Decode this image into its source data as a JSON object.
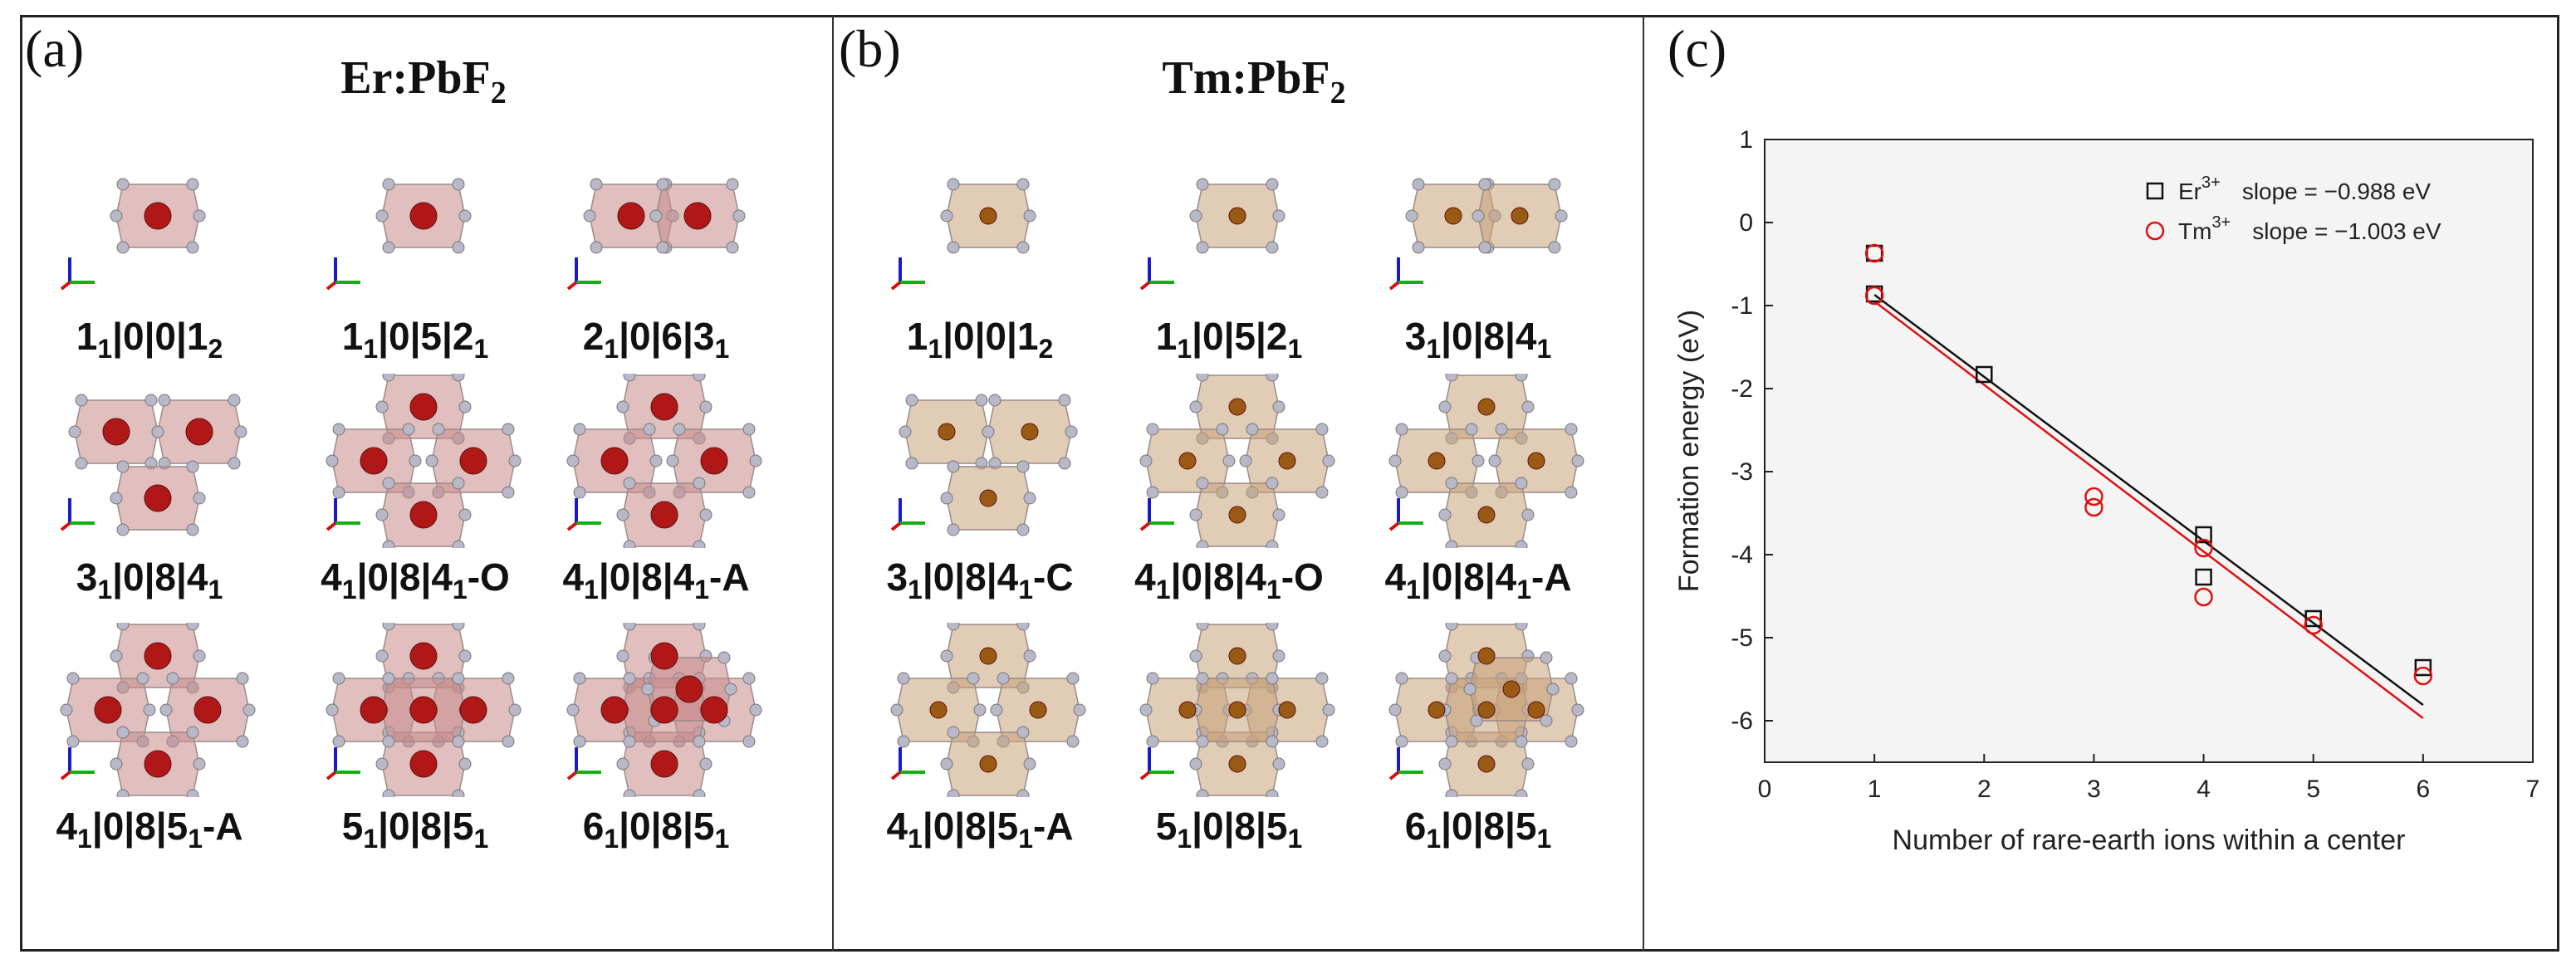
{
  "panel_a": {
    "letter": "(a)",
    "title_main": "Er:PbF",
    "title_sub": "2",
    "items": [
      {
        "parts": [
          "1",
          "1",
          "|0|0|1",
          "2",
          ""
        ]
      },
      {
        "parts": [
          "1",
          "1",
          "|0|5|2",
          "1",
          ""
        ]
      },
      {
        "parts": [
          "2",
          "1",
          "|0|6|3",
          "1",
          ""
        ]
      },
      {
        "parts": [
          "3",
          "1",
          "|0|8|4",
          "1",
          ""
        ]
      },
      {
        "parts": [
          "4",
          "1",
          "|0|8|4",
          "1",
          "-O"
        ]
      },
      {
        "parts": [
          "4",
          "1",
          "|0|8|4",
          "1",
          "-A"
        ]
      },
      {
        "parts": [
          "4",
          "1",
          "|0|8|5",
          "1",
          "-A"
        ]
      },
      {
        "parts": [
          "5",
          "1",
          "|0|8|5",
          "1",
          ""
        ]
      },
      {
        "parts": [
          "6",
          "1",
          "|0|8|5",
          "1",
          ""
        ]
      }
    ]
  },
  "panel_b": {
    "letter": "(b)",
    "title_main": "Tm:PbF",
    "title_sub": "2",
    "items": [
      {
        "parts": [
          "1",
          "1",
          "|0|0|1",
          "2",
          ""
        ]
      },
      {
        "parts": [
          "1",
          "1",
          "|0|5|2",
          "1",
          ""
        ]
      },
      {
        "parts": [
          "3",
          "1",
          "|0|8|4",
          "1",
          ""
        ]
      },
      {
        "parts": [
          "3",
          "1",
          "|0|8|4",
          "1",
          "-C"
        ]
      },
      {
        "parts": [
          "4",
          "1",
          "|0|8|4",
          "1",
          "-O"
        ]
      },
      {
        "parts": [
          "4",
          "1",
          "|0|8|4",
          "1",
          "-A"
        ]
      },
      {
        "parts": [
          "4",
          "1",
          "|0|8|5",
          "1",
          "-A"
        ]
      },
      {
        "parts": [
          "5",
          "1",
          "|0|8|5",
          "1",
          ""
        ]
      },
      {
        "parts": [
          "6",
          "1",
          "|0|8|5",
          "1",
          ""
        ]
      }
    ]
  },
  "panel_c": {
    "letter": "(c)"
  },
  "colors": {
    "er_poly": "#c98a8a",
    "er_ion": "#b01818",
    "tm_poly": "#c9a27a",
    "tm_ion": "#9a5a14",
    "fluorine": "#b8b8c8"
  },
  "chart_data": {
    "type": "scatter",
    "title": "",
    "xlabel": "Number of rare-earth ions within a center",
    "ylabel": "Formation energy (eV)",
    "xlim": [
      0,
      7
    ],
    "ylim": [
      -6.5,
      1
    ],
    "xticks": [
      0,
      1,
      2,
      3,
      4,
      5,
      6,
      7
    ],
    "yticks": [
      1,
      0,
      -1,
      -2,
      -3,
      -4,
      -5,
      -6
    ],
    "legend_position": "top-right",
    "series": [
      {
        "name": "Er",
        "sup": "3+",
        "slope_label": "slope = −0.988 eV",
        "marker": "square",
        "color": "#111111",
        "x": [
          1,
          1,
          2,
          4,
          4,
          5,
          6
        ],
        "y": [
          -0.37,
          -0.86,
          -1.83,
          -3.76,
          -4.27,
          -4.77,
          -5.36
        ],
        "fit": {
          "x": [
            1,
            6
          ],
          "y": [
            -0.87,
            -5.81
          ]
        }
      },
      {
        "name": "Tm",
        "sup": "3+",
        "slope_label": "slope = −1.003 eV",
        "marker": "circle",
        "color": "#e01010",
        "x": [
          1,
          1,
          3,
          3,
          4,
          4,
          5,
          6
        ],
        "y": [
          -0.37,
          -0.88,
          -3.3,
          -3.43,
          -3.92,
          -4.51,
          -4.85,
          -5.46
        ],
        "fit": {
          "x": [
            1,
            6
          ],
          "y": [
            -0.95,
            -5.97
          ]
        }
      }
    ]
  }
}
